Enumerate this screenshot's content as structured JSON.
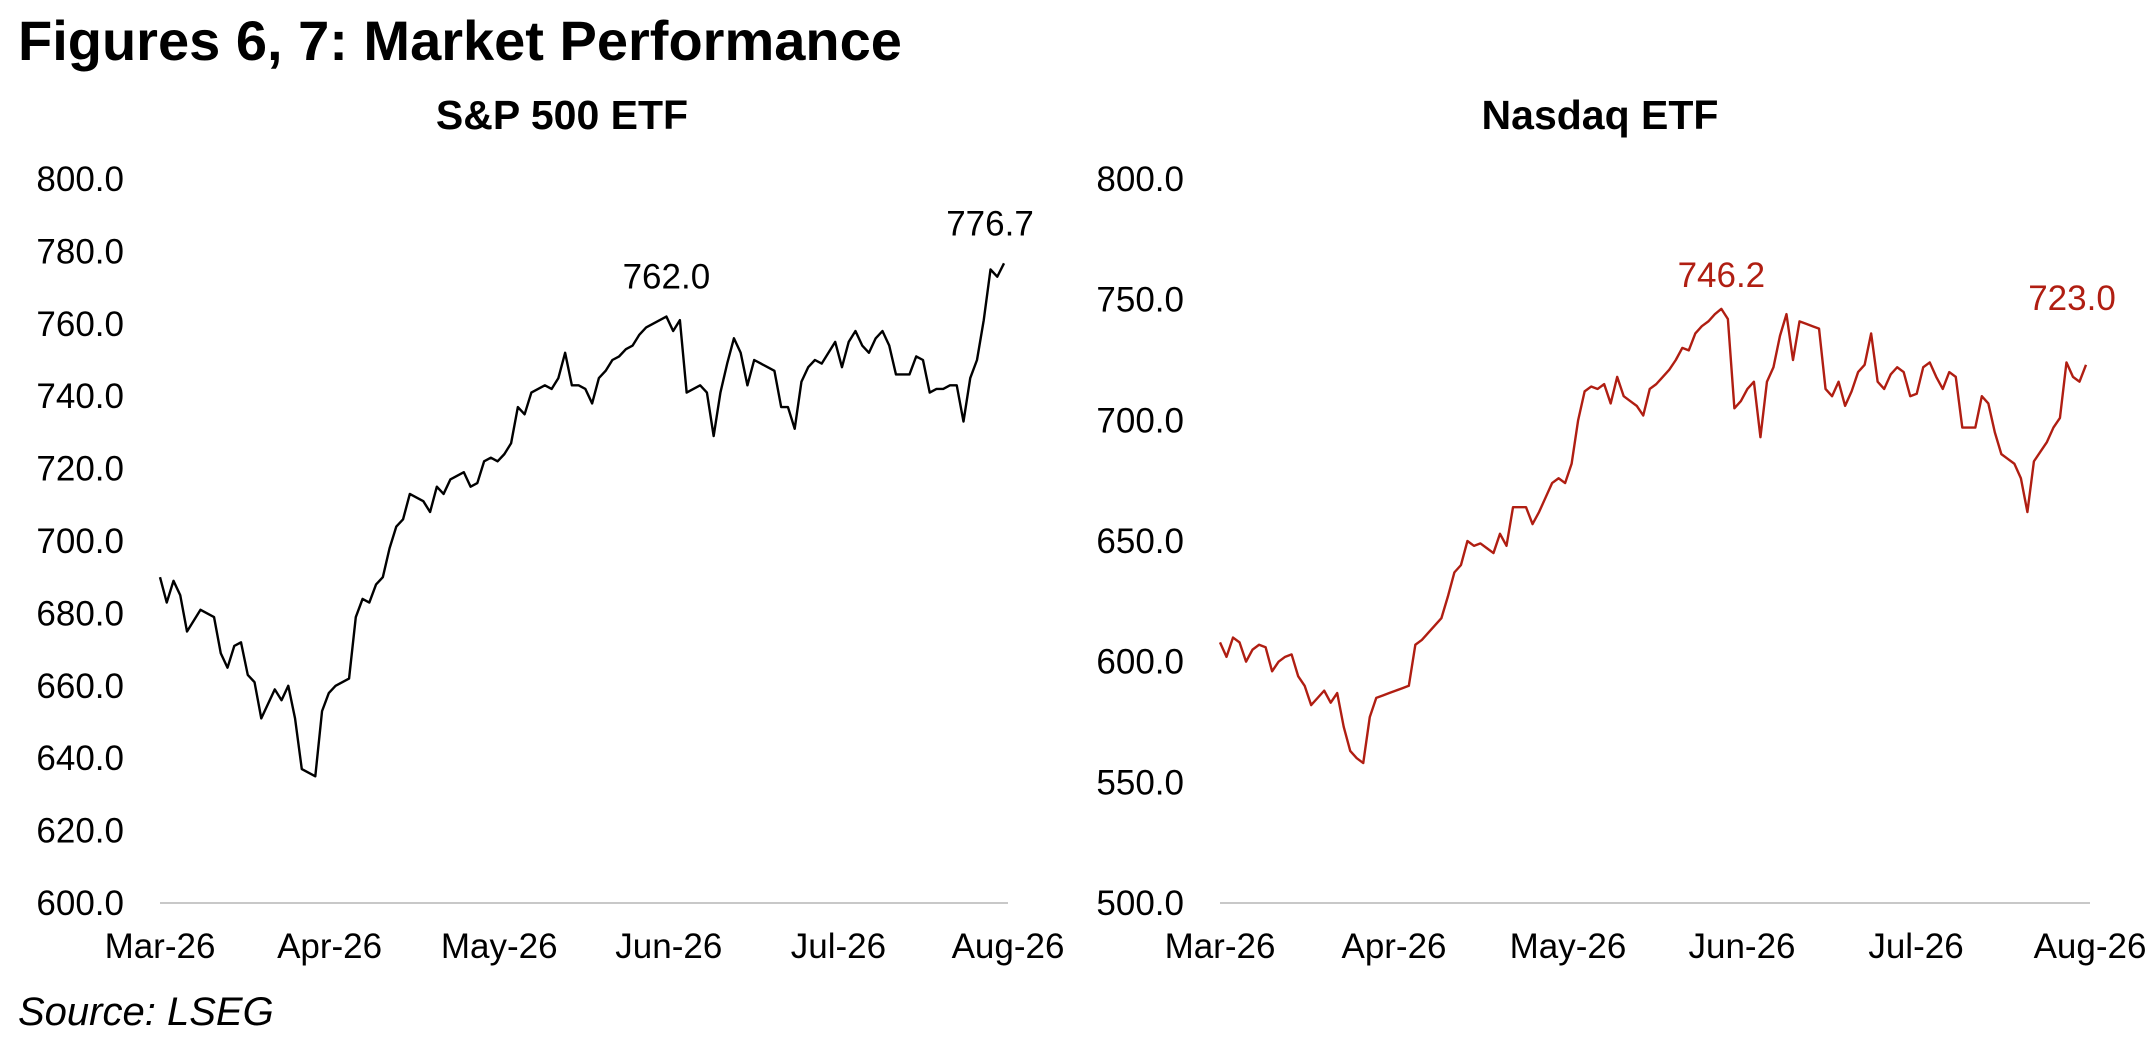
{
  "figure_title": "Figures 6, 7: Market Performance",
  "source": "Source: LSEG",
  "chart_data": [
    {
      "type": "line",
      "title": "S&P 500 ETF",
      "xlabel": "",
      "ylabel": "",
      "ylim": [
        600,
        800
      ],
      "y_ticks": [
        "600.0",
        "620.0",
        "640.0",
        "660.0",
        "680.0",
        "700.0",
        "720.0",
        "740.0",
        "760.0",
        "780.0",
        "800.0"
      ],
      "x_ticks": [
        "Mar-26",
        "Apr-26",
        "May-26",
        "Jun-26",
        "Jul-26",
        "Aug-26"
      ],
      "grid": false,
      "color": "#000000",
      "annotations": [
        {
          "text": "762.0",
          "value": 762.0
        },
        {
          "text": "776.7",
          "value": 776.7
        }
      ],
      "series": [
        {
          "values": [
            690,
            683,
            689,
            685,
            675,
            678,
            681,
            680,
            679,
            669,
            665,
            671,
            672,
            663,
            661,
            651,
            655,
            659,
            656,
            660,
            651,
            637,
            636,
            635,
            653,
            658,
            660,
            661,
            662,
            679,
            684,
            683,
            688,
            690,
            698,
            704,
            706,
            713,
            712,
            711,
            708,
            715,
            713,
            717,
            718,
            719,
            715,
            716,
            722,
            723,
            722,
            724,
            727,
            737,
            735,
            741,
            742,
            743,
            742,
            745,
            752,
            743,
            743,
            742,
            738,
            745,
            747,
            750,
            751,
            753,
            754,
            757,
            759,
            760,
            761,
            762,
            758,
            761,
            741,
            742,
            743,
            741,
            729,
            741,
            749,
            756,
            752,
            743,
            750,
            749,
            748,
            747,
            737,
            737,
            731,
            744,
            748,
            750,
            749,
            752,
            755,
            748,
            755,
            758,
            754,
            752,
            756,
            758,
            754,
            746,
            746,
            746,
            751,
            750,
            741,
            742,
            742,
            743,
            743,
            733,
            745,
            750,
            761,
            775,
            773,
            776.7
          ]
        }
      ]
    },
    {
      "type": "line",
      "title": "Nasdaq ETF",
      "xlabel": "",
      "ylabel": "",
      "ylim": [
        500,
        800
      ],
      "y_ticks": [
        "500.0",
        "550.0",
        "600.0",
        "650.0",
        "700.0",
        "750.0",
        "800.0"
      ],
      "x_ticks": [
        "Mar-26",
        "Apr-26",
        "May-26",
        "Jun-26",
        "Jul-26",
        "Aug-26"
      ],
      "grid": false,
      "color": "#b01e12",
      "annotations": [
        {
          "text": "746.2",
          "value": 746.2
        },
        {
          "text": "723.0",
          "value": 723.0
        }
      ],
      "series": [
        {
          "values": [
            608,
            602,
            610,
            608,
            600,
            605,
            607,
            606,
            596,
            600,
            602,
            603,
            594,
            590,
            582,
            585,
            588,
            583,
            587,
            573,
            563,
            560,
            558,
            577,
            585,
            586,
            587,
            588,
            589,
            590,
            607,
            609,
            612,
            615,
            618,
            627,
            637,
            640,
            650,
            648,
            649,
            647,
            645,
            653,
            648,
            664,
            664,
            664,
            657,
            662,
            668,
            674,
            676,
            674,
            682,
            700,
            712,
            714,
            713,
            715,
            707,
            718,
            710,
            708,
            706,
            702,
            713,
            715,
            718,
            721,
            725,
            730,
            729,
            736,
            739,
            741,
            744,
            746.2,
            742,
            705,
            708,
            713,
            716,
            693,
            716,
            722,
            735,
            744,
            725,
            741,
            740,
            739,
            738,
            713,
            710,
            716,
            706,
            712,
            720,
            723,
            736,
            716,
            713,
            719,
            722,
            720,
            710,
            711,
            722,
            724,
            718,
            713,
            720,
            718,
            697,
            697,
            697,
            710,
            707,
            695,
            686,
            684,
            682,
            676,
            662,
            683,
            687,
            691,
            697,
            701,
            724,
            718,
            716,
            723
          ]
        }
      ]
    }
  ]
}
